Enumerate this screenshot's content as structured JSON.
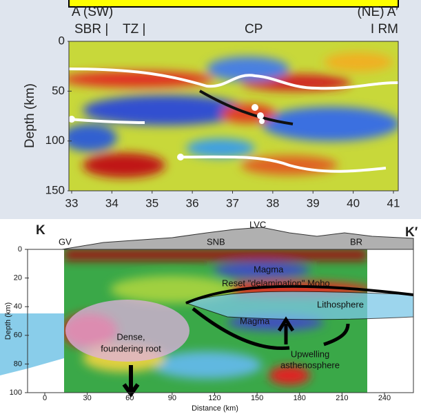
{
  "top_panel": {
    "left_label": "A (SW)",
    "right_label": "(NE) A′",
    "regions": [
      "SBR |",
      "TZ |",
      "CP",
      "I RM"
    ],
    "y_axis_label": "Depth (km)",
    "yticks": [
      0,
      50,
      100,
      150
    ],
    "xticks": [
      33,
      34,
      35,
      36,
      37,
      38,
      39,
      40,
      41
    ]
  },
  "bottom_panel": {
    "left_label": "K",
    "right_label": "K′",
    "regions": [
      "GV",
      "SNB",
      "LVC",
      "BR"
    ],
    "annotations": [
      "Magma",
      "Reset \"delamination\" Moho",
      "Lithosphere",
      "Magma",
      "Dense,",
      "foundering root",
      "Upwelling",
      "asthenosphere"
    ],
    "y_axis_label": "Depth (km)",
    "x_axis_label": "Distance (km)",
    "yticks": [
      0,
      20,
      40,
      60,
      80,
      100
    ],
    "xticks": [
      0,
      30,
      60,
      90,
      120,
      150,
      180,
      210,
      240
    ]
  }
}
